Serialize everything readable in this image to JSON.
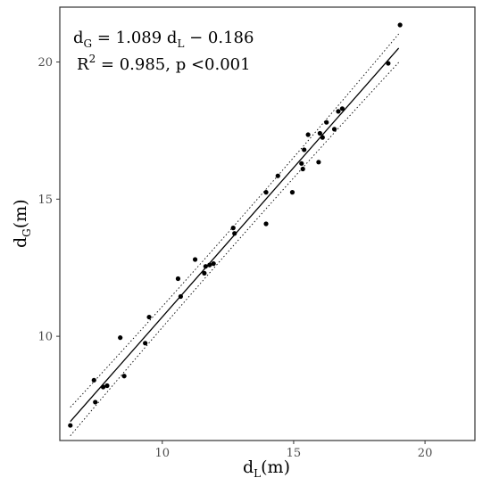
{
  "chart_data": {
    "type": "scatter",
    "xlabel": {
      "main": "d",
      "sub": "L",
      "unit": "(m)"
    },
    "ylabel": {
      "main": "d",
      "sub": "G",
      "unit": "(m)"
    },
    "xlim": [
      6.1,
      21.9
    ],
    "ylim": [
      6.2,
      22.0
    ],
    "xticks": [
      10,
      15,
      20
    ],
    "yticks": [
      10,
      15,
      20
    ],
    "grid": false,
    "annotations": {
      "equation": {
        "lhs_main": "d",
        "lhs_sub": "G",
        "mid": " = 1.089 d",
        "mid_sub": "L",
        "tail": " − 0.186"
      },
      "stats": {
        "prefix": "R",
        "sup": "2",
        "rest": " = 0.985, p <0.001"
      }
    },
    "regression": {
      "slope": 1.089,
      "intercept": -0.186,
      "x_range": [
        6.5,
        19.0
      ],
      "ci_offset": [
        0.52,
        0.35
      ]
    },
    "points": [
      [
        6.5,
        6.75
      ],
      [
        7.4,
        8.4
      ],
      [
        7.45,
        7.6
      ],
      [
        7.75,
        8.15
      ],
      [
        7.9,
        8.2
      ],
      [
        8.4,
        9.95
      ],
      [
        8.55,
        8.55
      ],
      [
        9.35,
        9.75
      ],
      [
        9.5,
        10.7
      ],
      [
        10.6,
        12.1
      ],
      [
        10.7,
        11.45
      ],
      [
        11.25,
        12.8
      ],
      [
        11.6,
        12.3
      ],
      [
        11.65,
        12.55
      ],
      [
        11.8,
        12.6
      ],
      [
        11.95,
        12.65
      ],
      [
        12.7,
        13.95
      ],
      [
        12.75,
        13.75
      ],
      [
        13.95,
        14.1
      ],
      [
        13.95,
        15.25
      ],
      [
        14.4,
        15.85
      ],
      [
        14.95,
        15.25
      ],
      [
        15.3,
        16.3
      ],
      [
        15.35,
        16.1
      ],
      [
        15.4,
        16.8
      ],
      [
        15.55,
        17.35
      ],
      [
        15.95,
        16.35
      ],
      [
        16.0,
        17.4
      ],
      [
        16.1,
        17.25
      ],
      [
        16.25,
        17.8
      ],
      [
        16.55,
        17.55
      ],
      [
        16.7,
        18.2
      ],
      [
        16.85,
        18.3
      ],
      [
        18.6,
        19.95
      ],
      [
        19.05,
        21.35
      ]
    ]
  }
}
